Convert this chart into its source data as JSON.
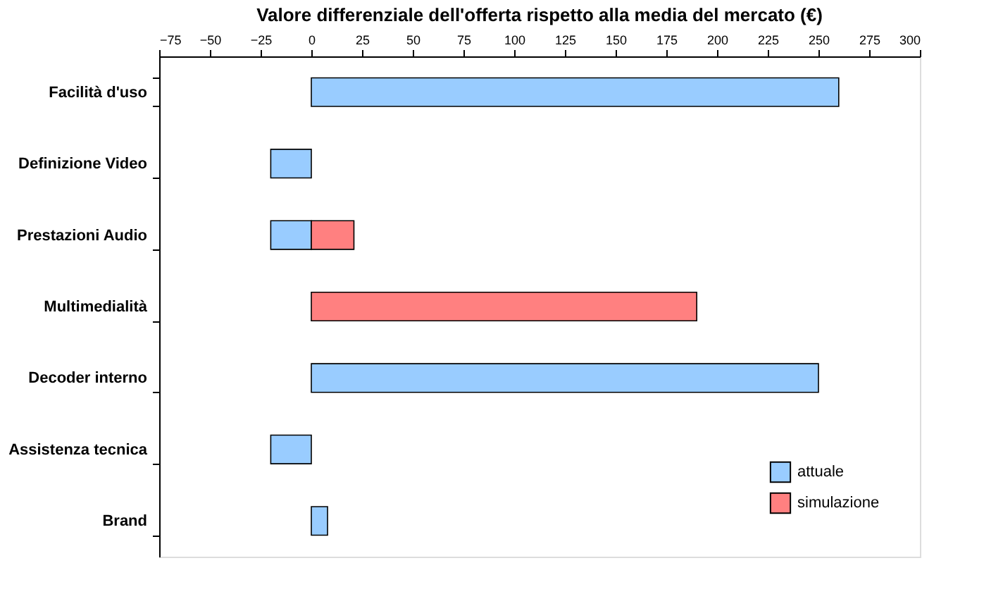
{
  "chart_data": {
    "type": "bar",
    "orientation": "horizontal",
    "title": "Valore differenziale dell'offerta rispetto alla media del mercato (€)",
    "categories": [
      "Facilità d'uso",
      "Definizione Video",
      "Prestazioni Audio",
      "Multimedialità",
      "Decoder interno",
      "Assistenza tecnica",
      "Brand"
    ],
    "series": [
      {
        "name": "attuale",
        "color": "#99ccff",
        "values": [
          260,
          -20,
          -20,
          null,
          250,
          -20,
          8
        ]
      },
      {
        "name": "simulazione",
        "color": "#ff8080",
        "values": [
          null,
          null,
          21,
          190,
          null,
          null,
          null
        ]
      }
    ],
    "xlim": [
      -75,
      300
    ],
    "xticks": [
      -75,
      -50,
      -25,
      0,
      25,
      50,
      75,
      100,
      125,
      150,
      175,
      200,
      225,
      250,
      275,
      300
    ],
    "grid": false,
    "legend": "bottom right"
  }
}
